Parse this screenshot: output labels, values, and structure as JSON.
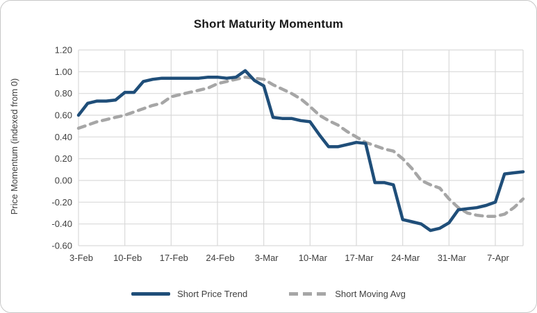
{
  "chart_data": {
    "type": "line",
    "title": "Short Maturity Momentum",
    "xlabel": "",
    "ylabel": "Price Momentum (indexed from 0)",
    "ylim": [
      -0.6,
      1.2
    ],
    "ytick_step": 0.2,
    "grid": true,
    "legend_position": "bottom",
    "ytick_labels": [
      "1.20",
      "1.00",
      "0.80",
      "0.60",
      "0.40",
      "0.20",
      "0.00",
      "-0.20",
      "-0.40",
      "-0.60"
    ],
    "xticks": [
      {
        "index": 0,
        "label": "3-Feb"
      },
      {
        "index": 5,
        "label": "10-Feb"
      },
      {
        "index": 10,
        "label": "17-Feb"
      },
      {
        "index": 15,
        "label": "24-Feb"
      },
      {
        "index": 20,
        "label": "3-Mar"
      },
      {
        "index": 25,
        "label": "10-Mar"
      },
      {
        "index": 30,
        "label": "17-Mar"
      },
      {
        "index": 35,
        "label": "24-Mar"
      },
      {
        "index": 40,
        "label": "31-Mar"
      },
      {
        "index": 45,
        "label": "7-Apr"
      }
    ],
    "x": [
      "3-Feb",
      "4-Feb",
      "5-Feb",
      "6-Feb",
      "7-Feb",
      "10-Feb",
      "11-Feb",
      "12-Feb",
      "13-Feb",
      "14-Feb",
      "17-Feb",
      "18-Feb",
      "19-Feb",
      "20-Feb",
      "21-Feb",
      "24-Feb",
      "25-Feb",
      "26-Feb",
      "27-Feb",
      "28-Feb",
      "3-Mar",
      "4-Mar",
      "5-Mar",
      "6-Mar",
      "7-Mar",
      "10-Mar",
      "11-Mar",
      "12-Mar",
      "13-Mar",
      "14-Mar",
      "17-Mar",
      "18-Mar",
      "19-Mar",
      "20-Mar",
      "21-Mar",
      "24-Mar",
      "25-Mar",
      "26-Mar",
      "27-Mar",
      "28-Mar",
      "31-Mar",
      "1-Apr",
      "2-Apr",
      "3-Apr",
      "4-Apr",
      "7-Apr",
      "8-Apr",
      "9-Apr",
      "10-Apr"
    ],
    "series": [
      {
        "name": "Short Price Trend",
        "style": "solid",
        "color": "#1F4E79",
        "values": [
          0.6,
          0.71,
          0.73,
          0.73,
          0.74,
          0.81,
          0.81,
          0.91,
          0.93,
          0.94,
          0.94,
          0.94,
          0.94,
          0.94,
          0.95,
          0.95,
          0.94,
          0.95,
          1.01,
          0.92,
          0.87,
          0.58,
          0.57,
          0.57,
          0.55,
          0.54,
          0.42,
          0.31,
          0.31,
          0.33,
          0.35,
          0.34,
          -0.02,
          -0.02,
          -0.04,
          -0.36,
          -0.38,
          -0.4,
          -0.46,
          -0.44,
          -0.39,
          -0.27,
          -0.26,
          -0.25,
          -0.23,
          -0.2,
          0.06,
          0.07,
          0.08
        ]
      },
      {
        "name": "Short Moving Avg",
        "style": "dashed",
        "color": "#A6A6A6",
        "values": [
          0.48,
          0.51,
          0.54,
          0.56,
          0.58,
          0.6,
          0.63,
          0.66,
          0.69,
          0.71,
          0.77,
          0.79,
          0.81,
          0.83,
          0.85,
          0.89,
          0.91,
          0.93,
          0.95,
          0.94,
          0.93,
          0.88,
          0.84,
          0.8,
          0.75,
          0.68,
          0.6,
          0.55,
          0.51,
          0.45,
          0.4,
          0.35,
          0.32,
          0.29,
          0.27,
          0.2,
          0.11,
          0.0,
          -0.04,
          -0.07,
          -0.17,
          -0.25,
          -0.3,
          -0.32,
          -0.33,
          -0.33,
          -0.31,
          -0.25,
          -0.17
        ]
      }
    ],
    "colors": {
      "gridline": "#D9D9D9",
      "axis_text": "#404040",
      "title_text": "#1A1A1A"
    }
  }
}
